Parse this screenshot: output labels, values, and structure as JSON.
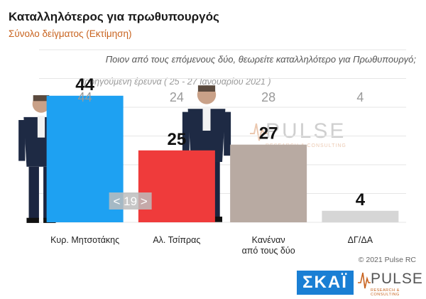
{
  "header": {
    "title": "Καταλληλότερος για πρωθυπουργός",
    "subtitle": "Σύνολο δείγματος   (Εκτίμηση)"
  },
  "question": "Ποιον από τους επόμενους δύο, θεωρείτε καταλληλότερο για Πρωθυπουργό;",
  "previous_label": "Προηγούμενη έρευνα  ( 25 - 27 Ιανουαρίου  2021 )",
  "gap_label": "< 19 >",
  "copyright": "© 2021 Pulse RC",
  "logos": {
    "skai": "ΣΚΑΪ",
    "pulse": "PULSE",
    "pulse_sub": "RESEARCH & CONSULTING"
  },
  "watermark": {
    "word": "PULSE",
    "sub": "RESEARCH & CONSULTING"
  },
  "chart_data": {
    "type": "bar",
    "categories": [
      "Κυρ. Μητσοτάκης",
      "Αλ. Τσίπρας",
      "Κανέναν από τους δύο",
      "ΔΓ/ΔΑ"
    ],
    "category_lines": [
      [
        "Κυρ. Μητσοτάκης"
      ],
      [
        "Αλ. Τσίπρας"
      ],
      [
        "Κανέναν",
        "από τους δύο"
      ],
      [
        "ΔΓ/ΔΑ"
      ]
    ],
    "values": [
      44,
      25,
      27,
      4
    ],
    "previous_values": [
      44,
      24,
      28,
      4
    ],
    "colors": [
      "#1ea1f2",
      "#ef3b3b",
      "#b8aaa2",
      "#d6d6d6"
    ],
    "ylim": [
      0,
      60
    ],
    "grid": true
  }
}
